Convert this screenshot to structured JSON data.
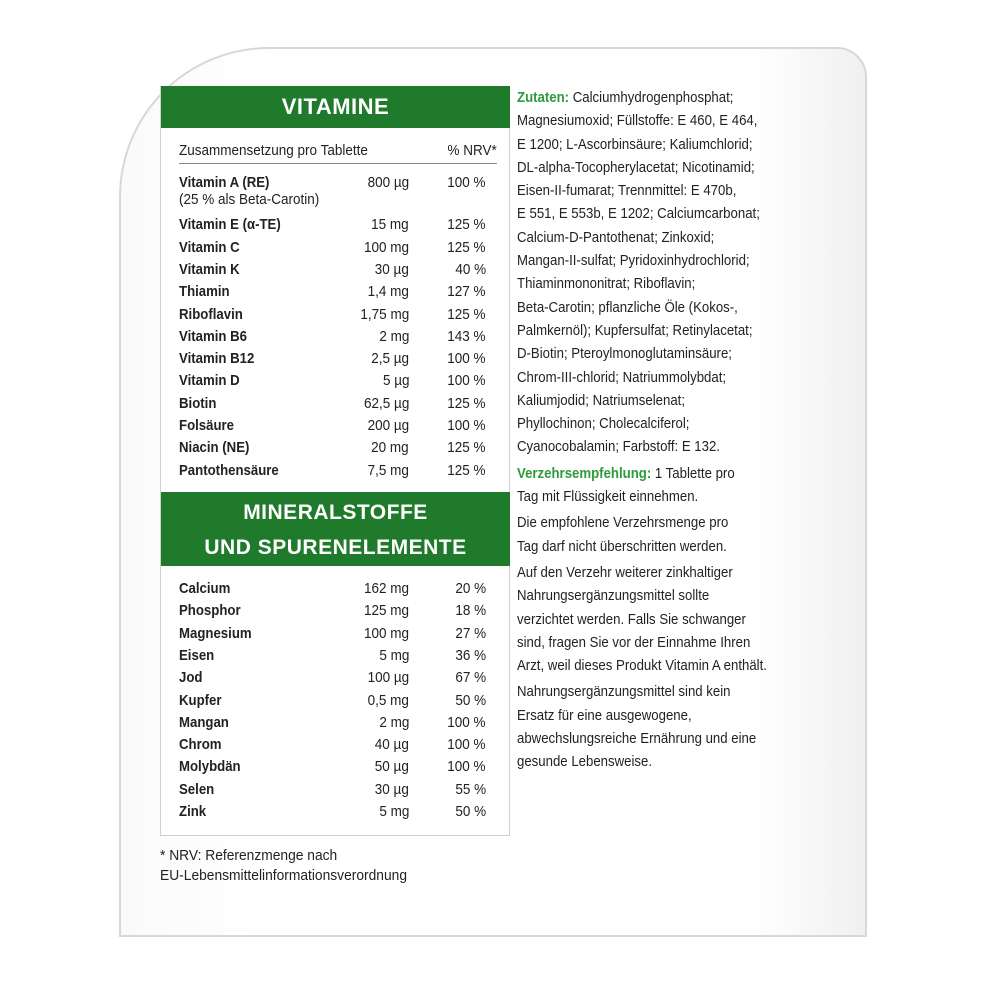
{
  "vitamins": {
    "title": "VITAMINE",
    "col_composition": "Zusammensetzung pro Tablette",
    "col_nrv": "% NRV*",
    "note": "(25 % als Beta-Carotin)",
    "rows": [
      {
        "name": "Vitamin A (RE)",
        "amount": "800 µg",
        "nrv": "100 %"
      },
      {
        "name": "Vitamin E (α-TE)",
        "amount": "15 mg",
        "nrv": "125 %"
      },
      {
        "name": "Vitamin C",
        "amount": "100 mg",
        "nrv": "125 %"
      },
      {
        "name": "Vitamin K",
        "amount": "30 µg",
        "nrv": "40 %"
      },
      {
        "name": "Thiamin",
        "amount": "1,4 mg",
        "nrv": "127 %"
      },
      {
        "name": "Riboflavin",
        "amount": "1,75 mg",
        "nrv": "125 %"
      },
      {
        "name": "Vitamin B6",
        "amount": "2 mg",
        "nrv": "143 %"
      },
      {
        "name": "Vitamin B12",
        "amount": "2,5 µg",
        "nrv": "100 %"
      },
      {
        "name": "Vitamin D",
        "amount": "5 µg",
        "nrv": "100 %"
      },
      {
        "name": "Biotin",
        "amount": "62,5 µg",
        "nrv": "125 %"
      },
      {
        "name": "Folsäure",
        "amount": "200 µg",
        "nrv": "100 %"
      },
      {
        "name": "Niacin (NE)",
        "amount": "20 mg",
        "nrv": "125 %"
      },
      {
        "name": "Pantothensäure",
        "amount": "7,5 mg",
        "nrv": "125 %"
      }
    ]
  },
  "minerals": {
    "title_line1": "MINERALSTOFFE",
    "title_line2": "UND SPURENELEMENTE",
    "rows": [
      {
        "name": "Calcium",
        "amount": "162 mg",
        "nrv": "20 %"
      },
      {
        "name": "Phosphor",
        "amount": "125 mg",
        "nrv": "18 %"
      },
      {
        "name": "Magnesium",
        "amount": "100 mg",
        "nrv": "27 %"
      },
      {
        "name": "Eisen",
        "amount": "5 mg",
        "nrv": "36 %"
      },
      {
        "name": "Jod",
        "amount": "100 µg",
        "nrv": "67 %"
      },
      {
        "name": "Kupfer",
        "amount": "0,5 mg",
        "nrv": "50 %"
      },
      {
        "name": "Mangan",
        "amount": "2 mg",
        "nrv": "100 %"
      },
      {
        "name": "Chrom",
        "amount": "40 µg",
        "nrv": "100 %"
      },
      {
        "name": "Molybdän",
        "amount": "50 µg",
        "nrv": "100 %"
      },
      {
        "name": "Selen",
        "amount": "30 µg",
        "nrv": "55 %"
      },
      {
        "name": "Zink",
        "amount": "5 mg",
        "nrv": "50 %"
      }
    ]
  },
  "footnote": [
    "* NRV: Referenzmenge nach",
    "EU-Lebensmittelinformationsverordnung"
  ],
  "ingredients": {
    "label": "Zutaten:",
    "lines": [
      " Calciumhydrogenphosphat;",
      "Magnesiumoxid; Füllstoffe: E 460, E 464,",
      "E 1200; L-Ascorbinsäure; Kaliumchlorid;",
      "DL-alpha-Tocopherylacetat; Nicotinamid;",
      "Eisen-II-fumarat; Trennmittel: E 470b,",
      "E 551, E 553b, E 1202; Calciumcarbonat;",
      "Calcium-D-Pantothenat; Zinkoxid;",
      "Mangan-II-sulfat; Pyridoxinhydrochlorid;",
      "Thiaminmononitrat; Riboflavin;",
      "Beta-Carotin; pflanzliche Öle (Kokos-,",
      "Palmkernöl); Kupfersulfat; Retinylacetat;",
      "D-Biotin; Pteroylmonoglutaminsäure;",
      "Chrom-III-chlorid; Natriummolybdat;",
      "Kaliumjodid; Natriumselenat;",
      "Phyllochinon; Cholecalciferol;",
      "Cyanocobalamin; Farbstoff: E 132."
    ]
  },
  "recommendation": {
    "label": "Verzehrsempfehlung:",
    "lines": [
      " 1 Tablette pro",
      "Tag mit Flüssigkeit einnehmen."
    ]
  },
  "warnings": [
    [
      "Die empfohlene Verzehrsmenge pro",
      "Tag darf nicht überschritten werden."
    ],
    [
      "Auf den Verzehr weiterer zinkhaltiger",
      "Nahrungsergänzungsmittel sollte",
      "verzichtet werden. Falls Sie schwanger",
      "sind, fragen Sie vor der Einnahme Ihren",
      "Arzt, weil dieses Produkt Vitamin A enthält."
    ],
    [
      "Nahrungsergänzungsmittel sind kein",
      "Ersatz für eine ausgewogene,",
      "abwechslungsreiche Ernährung und eine",
      "gesunde Lebensweise."
    ]
  ],
  "colors": {
    "header_green": "#1f7a2c",
    "label_green": "#2e9a3c"
  }
}
